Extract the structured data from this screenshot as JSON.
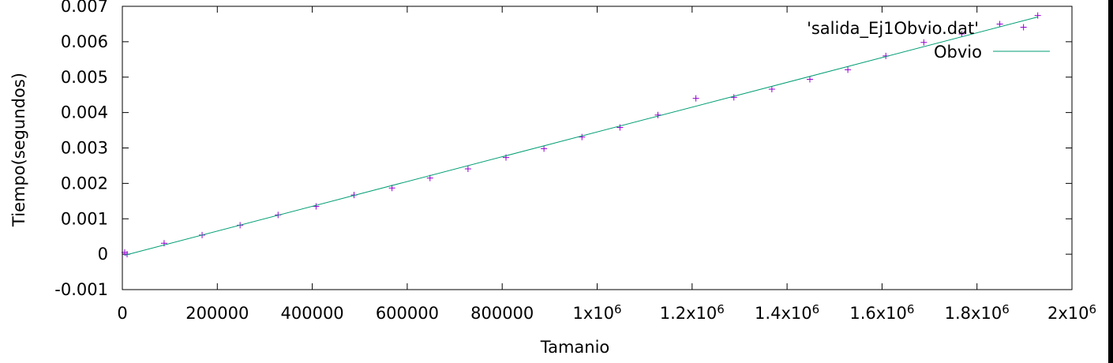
{
  "chart_data": {
    "type": "scatter",
    "xlabel": "Tamanio",
    "ylabel": "Tiempo(segundos)",
    "xlim": [
      0,
      2000000
    ],
    "ylim": [
      -0.001,
      0.007
    ],
    "x_ticks": [
      {
        "value": 0,
        "label": "0"
      },
      {
        "value": 200000,
        "label": "200000"
      },
      {
        "value": 400000,
        "label": "400000"
      },
      {
        "value": 600000,
        "label": "600000"
      },
      {
        "value": 800000,
        "label": "800000"
      },
      {
        "value": 1000000,
        "label": "1x10",
        "exp": "6"
      },
      {
        "value": 1200000,
        "label": "1.2x10",
        "exp": "6"
      },
      {
        "value": 1400000,
        "label": "1.4x10",
        "exp": "6"
      },
      {
        "value": 1600000,
        "label": "1.6x10",
        "exp": "6"
      },
      {
        "value": 1800000,
        "label": "1.8x10",
        "exp": "6"
      },
      {
        "value": 2000000,
        "label": "2x10",
        "exp": "6"
      }
    ],
    "y_ticks": [
      {
        "value": -0.001,
        "label": "-0.001"
      },
      {
        "value": 0,
        "label": "0"
      },
      {
        "value": 0.001,
        "label": "0.001"
      },
      {
        "value": 0.002,
        "label": "0.002"
      },
      {
        "value": 0.003,
        "label": "0.003"
      },
      {
        "value": 0.004,
        "label": "0.004"
      },
      {
        "value": 0.005,
        "label": "0.005"
      },
      {
        "value": 0.006,
        "label": "0.006"
      },
      {
        "value": 0.007,
        "label": "0.007"
      }
    ],
    "grid": false,
    "legend_position": "top-right",
    "series": [
      {
        "name": "'salida_Ej1Obvio.dat'",
        "style": "points",
        "color": "#9400d3",
        "points": [
          [
            5000,
            5e-05
          ],
          [
            10000,
            0.0
          ],
          [
            88000,
            0.00031
          ],
          [
            168000,
            0.00054
          ],
          [
            248000,
            0.00082
          ],
          [
            328000,
            0.00111
          ],
          [
            408000,
            0.00135
          ],
          [
            488000,
            0.00167
          ],
          [
            568000,
            0.00187
          ],
          [
            648000,
            0.00215
          ],
          [
            728000,
            0.00241
          ],
          [
            808000,
            0.00273
          ],
          [
            888000,
            0.00298
          ],
          [
            968000,
            0.00331
          ],
          [
            1048000,
            0.00358
          ],
          [
            1128000,
            0.00393
          ],
          [
            1208000,
            0.0044
          ],
          [
            1288000,
            0.00443
          ],
          [
            1368000,
            0.00466
          ],
          [
            1448000,
            0.00494
          ],
          [
            1528000,
            0.00521
          ],
          [
            1608000,
            0.0056
          ],
          [
            1688000,
            0.00598
          ],
          [
            1768000,
            0.00622
          ],
          [
            1848000,
            0.0065
          ],
          [
            1898000,
            0.00641
          ],
          [
            1928000,
            0.00674
          ]
        ]
      },
      {
        "name": "Obvio",
        "style": "line",
        "color": "#009e73",
        "points": [
          [
            5000,
            -3e-05
          ],
          [
            1928000,
            0.0067
          ]
        ]
      }
    ]
  }
}
